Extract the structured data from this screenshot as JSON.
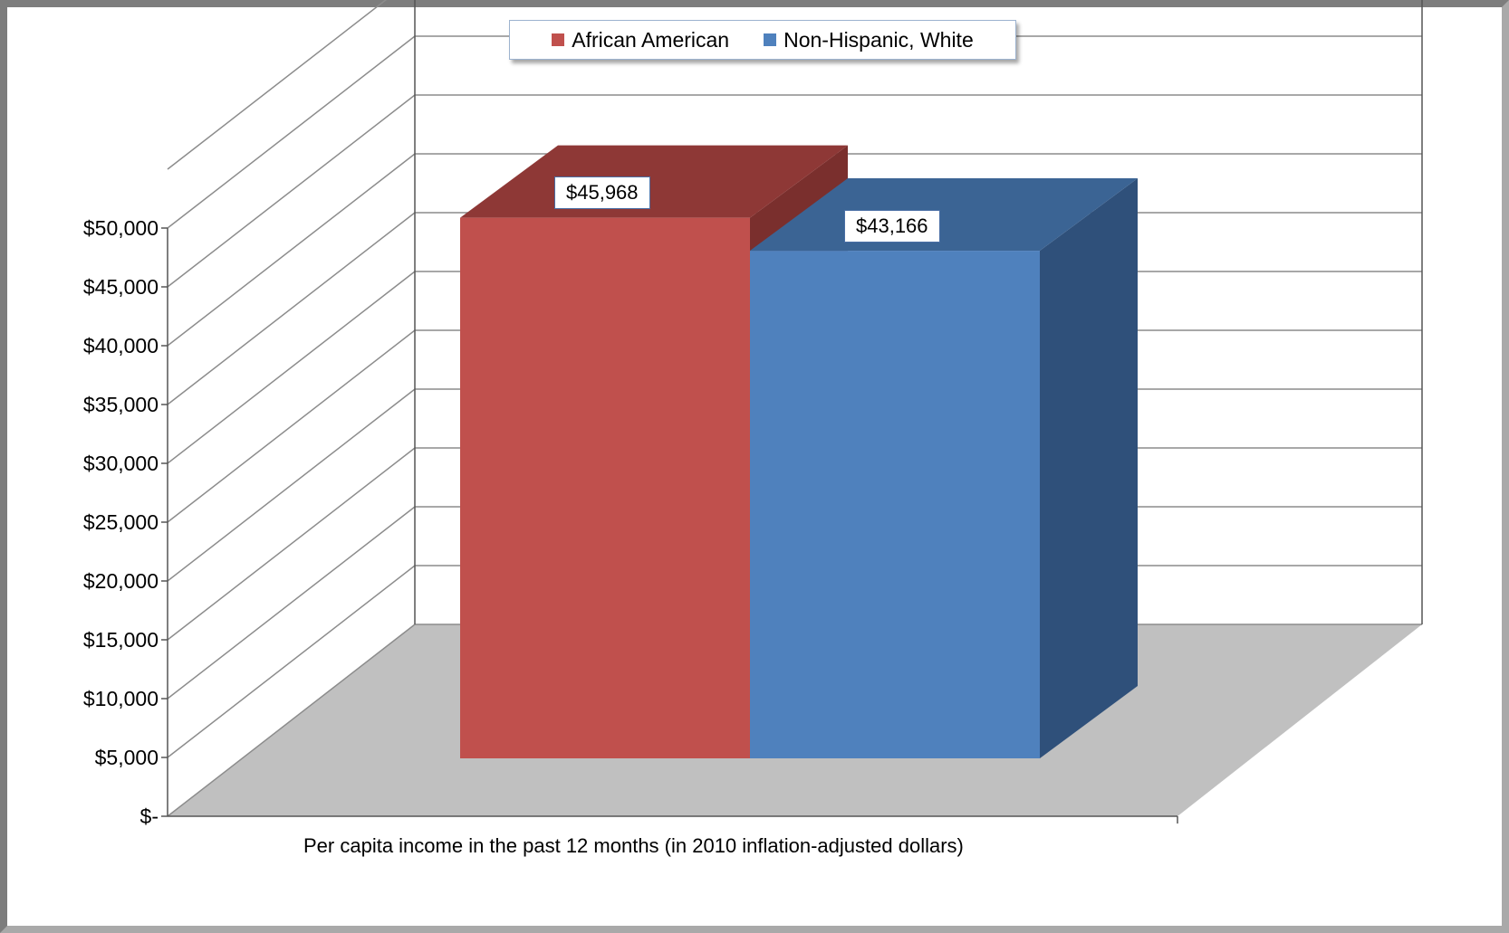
{
  "chart_data": {
    "type": "bar",
    "categories": [
      "Per capita income in the past 12 months (in 2010 inflation-adjusted dollars)"
    ],
    "series": [
      {
        "name": "African American",
        "values": [
          45968
        ],
        "data_label": "$45,968",
        "color": "#c0504d"
      },
      {
        "name": "Non-Hispanic, White",
        "values": [
          43166
        ],
        "data_label": "$43,166",
        "color": "#4f81bd"
      }
    ],
    "ylim": [
      0,
      50000
    ],
    "yticks": [
      0,
      5000,
      10000,
      15000,
      20000,
      25000,
      30000,
      35000,
      40000,
      45000,
      50000
    ],
    "ytick_labels": [
      "$-",
      "$5,000",
      "$10,000",
      "$15,000",
      "$20,000",
      "$25,000",
      "$30,000",
      "$35,000",
      "$40,000",
      "$45,000",
      "$50,000"
    ],
    "xlabel": "Per capita income in the past 12 months (in 2010 inflation-adjusted dollars)",
    "grid": true,
    "legend_position": "top-center",
    "style": "3d-column"
  }
}
